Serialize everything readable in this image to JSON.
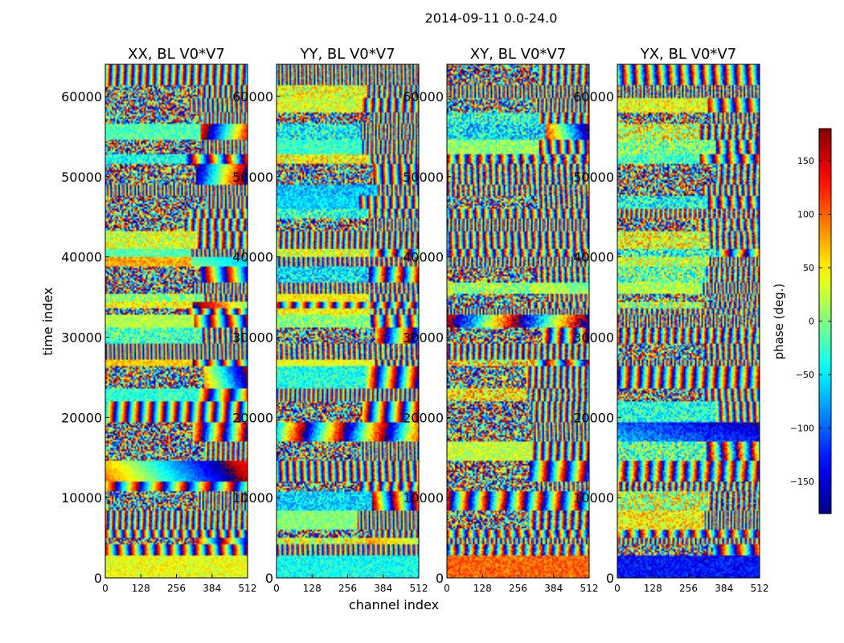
{
  "chart_data": {
    "type": "heatmap",
    "suptitle": "2014-09-11 0.0-24.0",
    "xlabel": "channel index",
    "ylabel": "time index",
    "xlim": [
      0,
      512
    ],
    "ylim": [
      0,
      64000
    ],
    "xticks": [
      "0",
      "128",
      "256",
      "384",
      "512"
    ],
    "xtick_values": [
      0,
      128,
      256,
      384,
      512
    ],
    "yticks": [
      "0",
      "10000",
      "20000",
      "30000",
      "40000",
      "50000",
      "60000"
    ],
    "ytick_values": [
      0,
      10000,
      20000,
      30000,
      40000,
      50000,
      60000
    ],
    "colormap": "jet",
    "colorbar": {
      "label": "phase (deg.)",
      "range": [
        -180,
        180
      ],
      "ticks": [
        "150",
        "100",
        "50",
        "0",
        "−50",
        "−100",
        "−150"
      ],
      "tick_values": [
        150,
        100,
        50,
        0,
        -50,
        -100,
        -150
      ]
    },
    "panels": [
      {
        "title": "XX, BL V0*V7",
        "mean_phase": 20,
        "noise": 0.6,
        "low_band_phase": 40
      },
      {
        "title": "YY, BL V0*V7",
        "mean_phase": -10,
        "noise": 0.7,
        "low_band_phase": -40
      },
      {
        "title": "XY, BL V0*V7",
        "mean_phase": 0,
        "noise": 1.0,
        "low_band_phase": 100
      },
      {
        "title": "YX, BL V0*V7",
        "mean_phase": 0,
        "noise": 1.0,
        "low_band_phase": -130
      }
    ]
  }
}
